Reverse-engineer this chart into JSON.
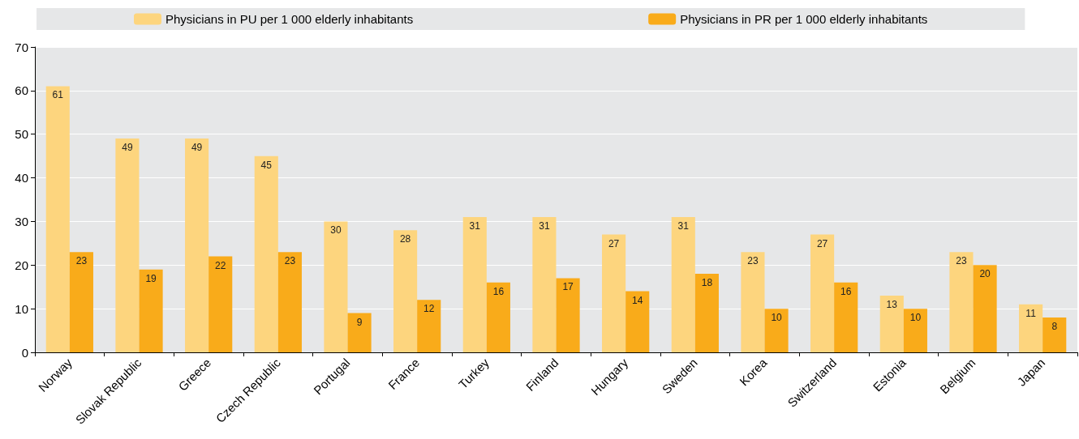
{
  "chart_data": {
    "type": "bar",
    "categories": [
      "Norway",
      "Slovak Republic",
      "Greece",
      "Czech Republic",
      "Portugal",
      "France",
      "Turkey",
      "Finland",
      "Hungary",
      "Sweden",
      "Korea",
      "Switzerland",
      "Estonia",
      "Belgium",
      "Japan"
    ],
    "series": [
      {
        "name": "Physicians in PU per 1 000 elderly inhabitants",
        "color": "#fdd57e",
        "values": [
          61,
          49,
          49,
          45,
          30,
          28,
          31,
          31,
          27,
          31,
          23,
          27,
          13,
          23,
          11
        ]
      },
      {
        "name": "Physicians in PR per 1 000 elderly inhabitants",
        "color": "#f9ab1a",
        "values": [
          23,
          19,
          22,
          23,
          9,
          12,
          16,
          17,
          14,
          18,
          10,
          16,
          10,
          20,
          8
        ]
      }
    ],
    "ylim": [
      0,
      70
    ],
    "yticks": [
      0,
      10,
      20,
      30,
      40,
      50,
      60,
      70
    ],
    "grid": "y",
    "legend": "top",
    "data_labels": true
  }
}
